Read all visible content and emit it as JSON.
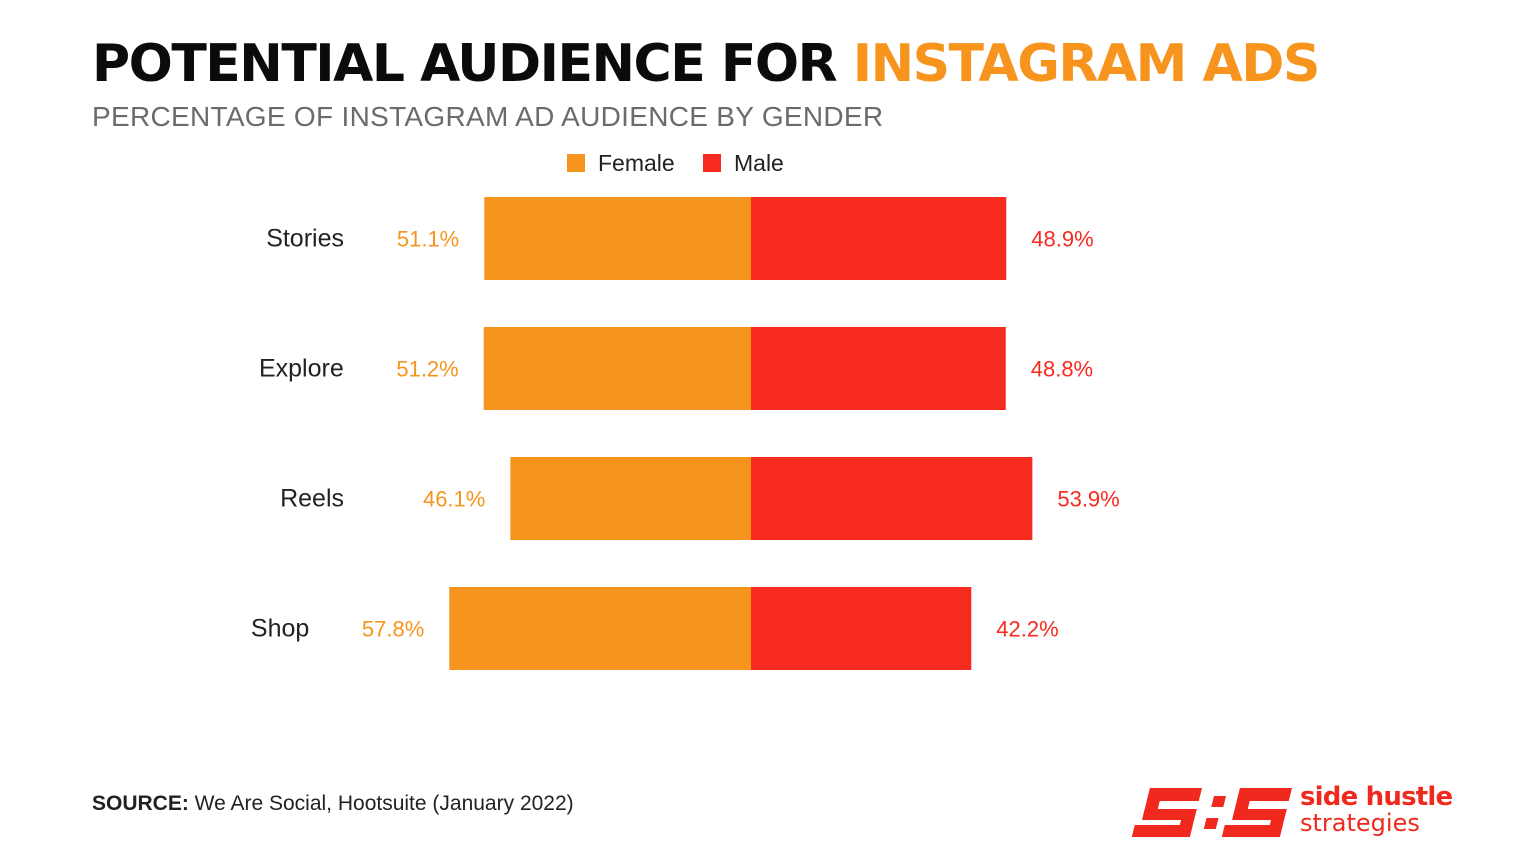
{
  "header": {
    "title_main": "POTENTIAL AUDIENCE FOR ",
    "title_accent": "INSTAGRAM ADS",
    "subtitle": "PERCENTAGE OF INSTAGRAM AD AUDIENCE BY GENDER"
  },
  "colors": {
    "female": "#f7941d",
    "male": "#f72a1f",
    "accent": "#f7941d",
    "brand": "#f0281e"
  },
  "chart_data": {
    "type": "bar",
    "orientation": "horizontal",
    "stacked": true,
    "legend_position": "top",
    "grid": false,
    "categories": [
      "Stories",
      "Explore",
      "Reels",
      "Shop"
    ],
    "series": [
      {
        "name": "Female",
        "values": [
          51.1,
          51.2,
          46.1,
          57.8
        ],
        "labels": [
          "51.1%",
          "51.2%",
          "46.1%",
          "57.8%"
        ]
      },
      {
        "name": "Male",
        "values": [
          48.9,
          48.8,
          53.9,
          42.2
        ],
        "labels": [
          "48.9%",
          "48.8%",
          "53.9%",
          "42.2%"
        ]
      }
    ],
    "unit": "%"
  },
  "footer": {
    "source_label": "SOURCE:",
    "source_text": " We Are Social, Hootsuite (January 2022)"
  },
  "logo": {
    "mark": "S:S",
    "line1": "side hustle",
    "line2": "strategies"
  }
}
